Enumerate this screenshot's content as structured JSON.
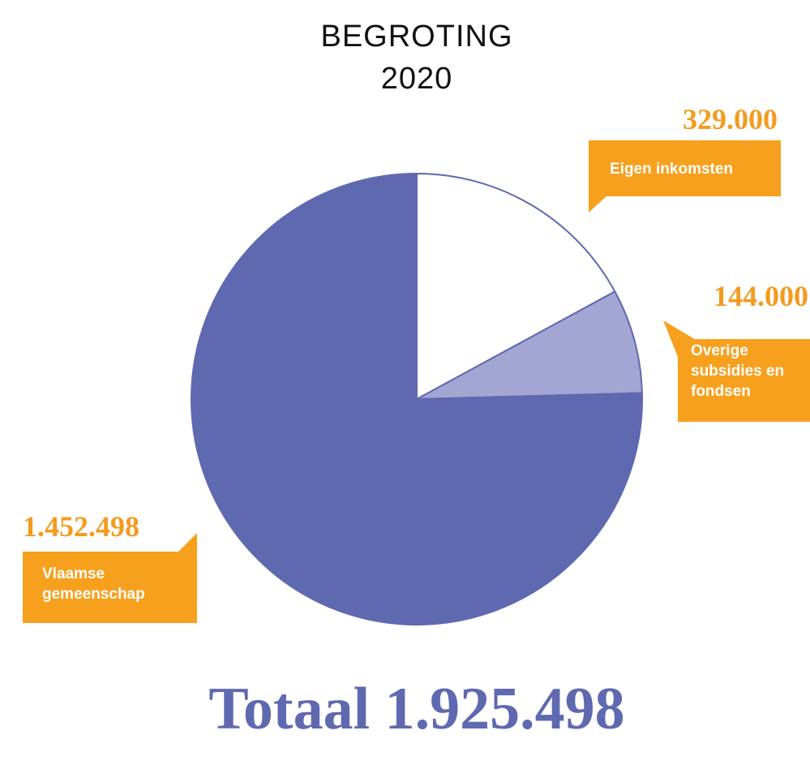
{
  "chart_data": {
    "type": "pie",
    "title": [
      "BEGROTING",
      "2020"
    ],
    "categories": [
      "Eigen inkomsten",
      "Overige subsidies en fondsen",
      "Vlaamse gemeenschap"
    ],
    "values": [
      329000,
      144000,
      1452498
    ],
    "value_labels": [
      "329.000",
      "144.000",
      "1.452.498"
    ],
    "colors": [
      "#ffffff",
      "#a3a5d2",
      "#5f69b0"
    ],
    "total": "Totaal 1.925.498"
  }
}
